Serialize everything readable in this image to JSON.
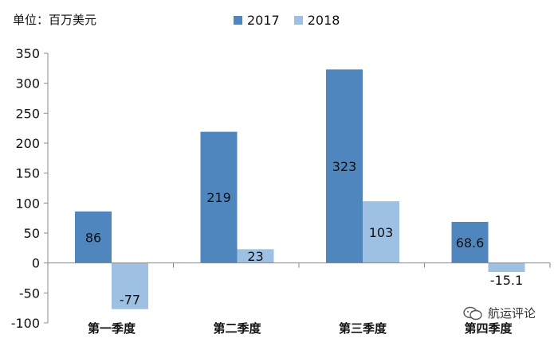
{
  "chart_data": {
    "type": "bar",
    "unit_label": "单位：百万美元",
    "categories": [
      "第一季度",
      "第二季度",
      "第三季度",
      "第四季度"
    ],
    "series": [
      {
        "name": "2017",
        "values": [
          86,
          219,
          323,
          68.6
        ],
        "labels": [
          "86",
          "219",
          "323",
          "68.6"
        ],
        "color": "#4f86be"
      },
      {
        "name": "2018",
        "values": [
          -77,
          23,
          103,
          -15.1
        ],
        "labels": [
          "-77",
          "23",
          "103",
          "-15.1"
        ],
        "color": "#9dc0e3"
      }
    ],
    "ylim": [
      -100,
      350
    ],
    "yticks": [
      "-100",
      "-50",
      "0",
      "50",
      "100",
      "150",
      "200",
      "250",
      "300",
      "350"
    ],
    "legend_position": "top-center",
    "grid": false
  },
  "watermark": {
    "text": "航运评论",
    "icon": "wechat-icon"
  }
}
